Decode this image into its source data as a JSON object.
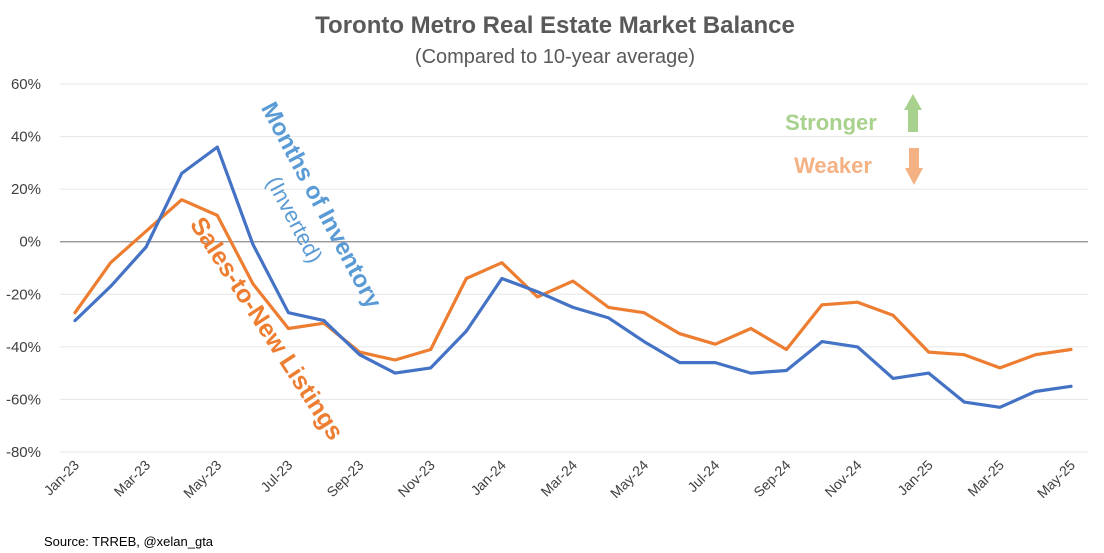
{
  "chart_data": {
    "type": "line",
    "title": "Toronto Metro Real Estate Market Balance",
    "subtitle": "(Compared to 10-year average)",
    "ylim": [
      -80,
      60
    ],
    "yticks": [
      "60%",
      "40%",
      "20%",
      "0%",
      "-20%",
      "-40%",
      "-60%",
      "-80%"
    ],
    "ytick_values": [
      60,
      40,
      20,
      0,
      -20,
      -40,
      -60,
      -80
    ],
    "x": [
      "Jan-23",
      "Feb-23",
      "Mar-23",
      "Apr-23",
      "May-23",
      "Jun-23",
      "Jul-23",
      "Aug-23",
      "Sep-23",
      "Oct-23",
      "Nov-23",
      "Dec-23",
      "Jan-24",
      "Feb-24",
      "Mar-24",
      "Apr-24",
      "May-24",
      "Jun-24",
      "Jul-24",
      "Aug-24",
      "Sep-24",
      "Oct-24",
      "Nov-24",
      "Dec-24",
      "Jan-25",
      "Feb-25",
      "Mar-25",
      "Apr-25",
      "May-25"
    ],
    "x_tick_labels": [
      "Jan-23",
      "Mar-23",
      "May-23",
      "Jul-23",
      "Sep-23",
      "Nov-23",
      "Jan-24",
      "Mar-24",
      "May-24",
      "Jul-24",
      "Sep-24",
      "Nov-24",
      "Jan-25",
      "Mar-25",
      "May-25"
    ],
    "grid": "horizontal",
    "series": [
      {
        "name": "Months of Inventory",
        "sub": "(Inverted)",
        "color": "#4472C4",
        "values": [
          -30,
          -17,
          -2,
          26,
          36,
          -1,
          -27,
          -30,
          -43,
          -50,
          -48,
          -34,
          -14,
          -19,
          -25,
          -29,
          -38,
          -46,
          -46,
          -50,
          -49,
          -38,
          -40,
          -52,
          -50,
          -61,
          -63,
          -57,
          -55
        ]
      },
      {
        "name": "Sales-to-New Listings",
        "color": "#ED7D31",
        "values": [
          -27,
          -8,
          4,
          16,
          10,
          -16,
          -33,
          -31,
          -42,
          -45,
          -41,
          -14,
          -8,
          -21,
          -15,
          -25,
          -27,
          -35,
          -39,
          -33,
          -41,
          -24,
          -23,
          -28,
          -42,
          -43,
          -48,
          -43,
          -41
        ]
      }
    ],
    "annotations": {
      "stronger": "Stronger",
      "weaker": "Weaker",
      "stronger_color": "#A9D18E",
      "weaker_color": "#F4B183"
    },
    "source": "Source: TRREB, @xelan_gta"
  }
}
